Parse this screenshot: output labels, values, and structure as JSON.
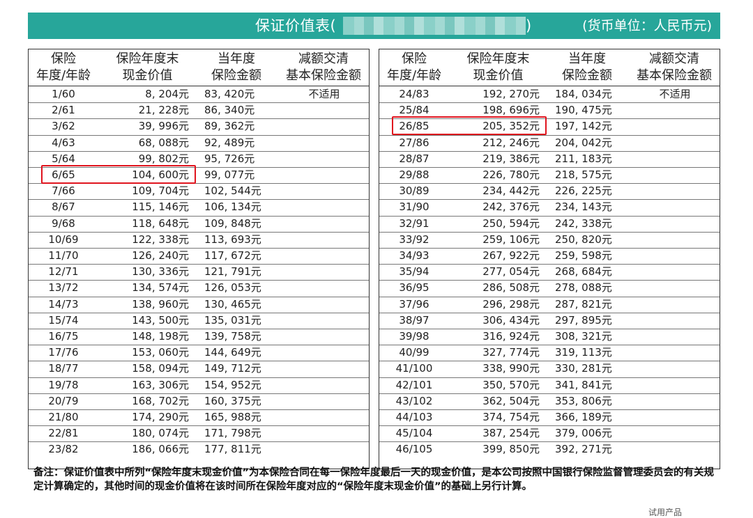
{
  "banner": {
    "title": "保证价值表(",
    "title_close": ")",
    "unit": "(货币单位：人民币元)",
    "color": "#27a69a"
  },
  "headers": {
    "age": [
      "保险",
      "年度/年龄"
    ],
    "cash_value": [
      "保险年度末",
      "现金价值"
    ],
    "sum_insured": [
      "当年度",
      "保险金额"
    ],
    "reduced": [
      "减额交清",
      "基本保险金额"
    ]
  },
  "left_rows": [
    {
      "age": "1/60",
      "cash": "8, 204元",
      "sum": "83, 420元",
      "reduced": "不适用"
    },
    {
      "age": "2/61",
      "cash": "21, 228元",
      "sum": "86, 340元",
      "reduced": ""
    },
    {
      "age": "3/62",
      "cash": "39, 996元",
      "sum": "89, 362元",
      "reduced": ""
    },
    {
      "age": "4/63",
      "cash": "68, 088元",
      "sum": "92, 489元",
      "reduced": ""
    },
    {
      "age": "5/64",
      "cash": "99, 802元",
      "sum": "95, 726元",
      "reduced": ""
    },
    {
      "age": "6/65",
      "cash": "104, 600元",
      "sum": "99, 077元",
      "reduced": ""
    },
    {
      "age": "7/66",
      "cash": "109, 704元",
      "sum": "102, 544元",
      "reduced": ""
    },
    {
      "age": "8/67",
      "cash": "115, 146元",
      "sum": "106, 134元",
      "reduced": ""
    },
    {
      "age": "9/68",
      "cash": "118, 648元",
      "sum": "109, 848元",
      "reduced": ""
    },
    {
      "age": "10/69",
      "cash": "122, 338元",
      "sum": "113, 693元",
      "reduced": ""
    },
    {
      "age": "11/70",
      "cash": "126, 240元",
      "sum": "117, 672元",
      "reduced": ""
    },
    {
      "age": "12/71",
      "cash": "130, 336元",
      "sum": "121, 791元",
      "reduced": ""
    },
    {
      "age": "13/72",
      "cash": "134, 574元",
      "sum": "126, 053元",
      "reduced": ""
    },
    {
      "age": "14/73",
      "cash": "138, 960元",
      "sum": "130, 465元",
      "reduced": ""
    },
    {
      "age": "15/74",
      "cash": "143, 500元",
      "sum": "135, 031元",
      "reduced": ""
    },
    {
      "age": "16/75",
      "cash": "148, 198元",
      "sum": "139, 758元",
      "reduced": ""
    },
    {
      "age": "17/76",
      "cash": "153, 060元",
      "sum": "144, 649元",
      "reduced": ""
    },
    {
      "age": "18/77",
      "cash": "158, 094元",
      "sum": "149, 712元",
      "reduced": ""
    },
    {
      "age": "19/78",
      "cash": "163, 306元",
      "sum": "154, 952元",
      "reduced": ""
    },
    {
      "age": "20/79",
      "cash": "168, 702元",
      "sum": "160, 375元",
      "reduced": ""
    },
    {
      "age": "21/80",
      "cash": "174, 290元",
      "sum": "165, 988元",
      "reduced": ""
    },
    {
      "age": "22/81",
      "cash": "180, 074元",
      "sum": "171, 798元",
      "reduced": ""
    },
    {
      "age": "23/82",
      "cash": "186, 066元",
      "sum": "177, 811元",
      "reduced": ""
    }
  ],
  "right_rows": [
    {
      "age": "24/83",
      "cash": "192, 270元",
      "sum": "184, 034元",
      "reduced": "不适用"
    },
    {
      "age": "25/84",
      "cash": "198, 696元",
      "sum": "190, 475元",
      "reduced": ""
    },
    {
      "age": "26/85",
      "cash": "205, 352元",
      "sum": "197, 142元",
      "reduced": ""
    },
    {
      "age": "27/86",
      "cash": "212, 246元",
      "sum": "204, 042元",
      "reduced": ""
    },
    {
      "age": "28/87",
      "cash": "219, 386元",
      "sum": "211, 183元",
      "reduced": ""
    },
    {
      "age": "29/88",
      "cash": "226, 780元",
      "sum": "218, 575元",
      "reduced": ""
    },
    {
      "age": "30/89",
      "cash": "234, 442元",
      "sum": "226, 225元",
      "reduced": ""
    },
    {
      "age": "31/90",
      "cash": "242, 376元",
      "sum": "234, 143元",
      "reduced": ""
    },
    {
      "age": "32/91",
      "cash": "250, 594元",
      "sum": "242, 338元",
      "reduced": ""
    },
    {
      "age": "33/92",
      "cash": "259, 106元",
      "sum": "250, 820元",
      "reduced": ""
    },
    {
      "age": "34/93",
      "cash": "267, 922元",
      "sum": "259, 598元",
      "reduced": ""
    },
    {
      "age": "35/94",
      "cash": "277, 054元",
      "sum": "268, 684元",
      "reduced": ""
    },
    {
      "age": "36/95",
      "cash": "286, 508元",
      "sum": "278, 088元",
      "reduced": ""
    },
    {
      "age": "37/96",
      "cash": "296, 298元",
      "sum": "287, 821元",
      "reduced": ""
    },
    {
      "age": "38/97",
      "cash": "306, 434元",
      "sum": "297, 895元",
      "reduced": ""
    },
    {
      "age": "39/98",
      "cash": "316, 924元",
      "sum": "308, 321元",
      "reduced": ""
    },
    {
      "age": "40/99",
      "cash": "327, 774元",
      "sum": "319, 113元",
      "reduced": ""
    },
    {
      "age": "41/100",
      "cash": "338, 990元",
      "sum": "330, 281元",
      "reduced": ""
    },
    {
      "age": "42/101",
      "cash": "350, 570元",
      "sum": "341, 841元",
      "reduced": ""
    },
    {
      "age": "43/102",
      "cash": "362, 504元",
      "sum": "353, 806元",
      "reduced": ""
    },
    {
      "age": "44/103",
      "cash": "374, 754元",
      "sum": "366, 189元",
      "reduced": ""
    },
    {
      "age": "45/104",
      "cash": "387, 254元",
      "sum": "379, 006元",
      "reduced": ""
    },
    {
      "age": "46/105",
      "cash": "399, 850元",
      "sum": "392, 271元",
      "reduced": ""
    }
  ],
  "highlights": {
    "left_row": "6/65",
    "right_row": "26/85",
    "color": "#e0141e"
  },
  "note": "备注：保证价值表中所列“保险年度末现金价值”为本保险合同在每一保险年度最后一天的现金价值，是本公司按照中国银行保险监督管理委员会的有关规定计算确定的，其他时间的现金价值将在该时间所在保险年度对应的“保险年度末现金价值”的基础上另行计算。",
  "corner_text": "试用产品"
}
